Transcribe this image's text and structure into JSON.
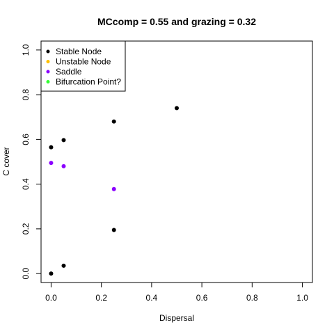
{
  "chart_data": {
    "type": "scatter",
    "title": "MCcomp =  0.55 and grazing = 0.32",
    "xlabel": "Dispersal",
    "ylabel": "C cover",
    "xlim": [
      -0.04,
      1.04
    ],
    "ylim": [
      -0.04,
      1.04
    ],
    "xticks": [
      0,
      0.2,
      0.4,
      0.6,
      0.8,
      1
    ],
    "yticks": [
      0,
      0.2,
      0.4,
      0.6,
      0.8,
      1
    ],
    "xtick_labels": [
      "0.0",
      "0.2",
      "0.4",
      "0.6",
      "0.8",
      "1.0"
    ],
    "ytick_labels": [
      "0.0",
      "0.2",
      "0.4",
      "0.6",
      "0.8",
      "1.0"
    ],
    "grid": false,
    "legend_position": "top-left",
    "legend": [
      {
        "name": "Stable Node",
        "color": "#000000"
      },
      {
        "name": "Unstable Node",
        "color": "#FFC000"
      },
      {
        "name": "Saddle",
        "color": "#8B00FF"
      },
      {
        "name": "Bifurcation Point?",
        "color": "#33FF33"
      }
    ],
    "series": [
      {
        "name": "Stable Node",
        "color": "#000000",
        "points": [
          {
            "x": 0.0,
            "y": 0.0
          },
          {
            "x": 0.0,
            "y": 0.565
          },
          {
            "x": 0.05,
            "y": 0.035
          },
          {
            "x": 0.05,
            "y": 0.597
          },
          {
            "x": 0.25,
            "y": 0.195
          },
          {
            "x": 0.25,
            "y": 0.68
          },
          {
            "x": 0.5,
            "y": 0.74
          }
        ]
      },
      {
        "name": "Unstable Node",
        "color": "#FFC000",
        "points": []
      },
      {
        "name": "Saddle",
        "color": "#8B00FF",
        "points": [
          {
            "x": 0.0,
            "y": 0.495
          },
          {
            "x": 0.05,
            "y": 0.48
          },
          {
            "x": 0.25,
            "y": 0.378
          }
        ]
      },
      {
        "name": "Bifurcation Point?",
        "color": "#33FF33",
        "points": []
      }
    ]
  }
}
